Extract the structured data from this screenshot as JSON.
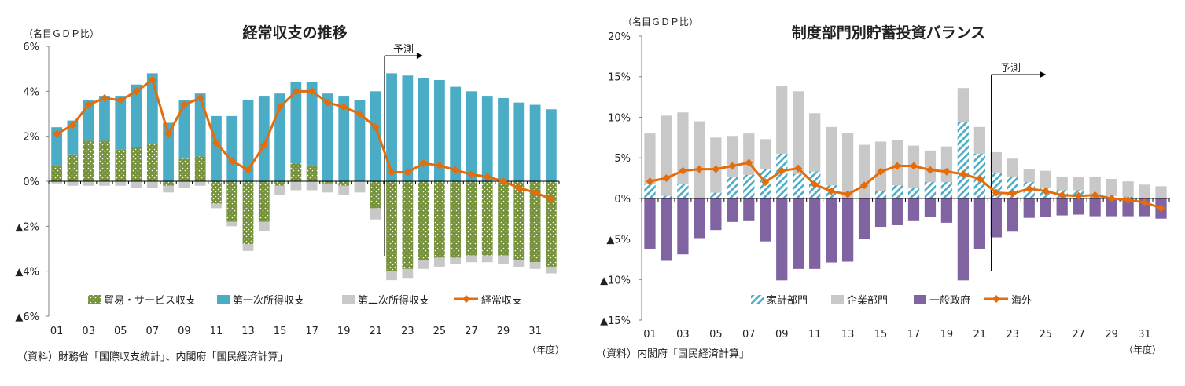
{
  "chart_data": [
    {
      "type": "bar",
      "title": "経常収支の推移",
      "unit_label": "（名目ＧＤＰ比）",
      "xlabel": "（年度）",
      "source": "（資料）財務省「国際収支統計」、内閣府「国民経済計算」",
      "forecast_label": "予測",
      "forecast_start_index": 21,
      "ylim": [
        -6,
        6
      ],
      "ytick_values": [
        6,
        4,
        2,
        0,
        -2,
        -4,
        -6
      ],
      "ytick_labels": [
        "6%",
        "4%",
        "2%",
        "0%",
        "▲2%",
        "▲4%",
        "▲6%"
      ],
      "years": [
        "01",
        "02",
        "03",
        "04",
        "05",
        "06",
        "07",
        "08",
        "09",
        "10",
        "11",
        "12",
        "13",
        "14",
        "15",
        "16",
        "17",
        "18",
        "19",
        "20",
        "21",
        "22",
        "23",
        "24",
        "25",
        "26",
        "27",
        "28",
        "29",
        "30",
        "31",
        "32"
      ],
      "xtick_labels": [
        "01",
        "",
        "03",
        "",
        "05",
        "",
        "07",
        "",
        "09",
        "",
        "11",
        "",
        "13",
        "",
        "15",
        "",
        "17",
        "",
        "19",
        "",
        "21",
        "",
        "23",
        "",
        "25",
        "",
        "27",
        "",
        "29",
        "",
        "31",
        ""
      ],
      "stacked_series": [
        {
          "name": "貿易・サービス収支",
          "color": "#76933c",
          "values": [
            0.7,
            1.2,
            1.8,
            1.8,
            1.4,
            1.5,
            1.7,
            -0.2,
            1.0,
            1.1,
            -1.0,
            -1.8,
            -2.8,
            -1.8,
            -0.2,
            0.8,
            0.7,
            -0.1,
            -0.2,
            0.0,
            -1.2,
            -4.0,
            -3.9,
            -3.5,
            -3.4,
            -3.4,
            -3.3,
            -3.3,
            -3.3,
            -3.5,
            -3.6,
            -3.8
          ]
        },
        {
          "name": "第一次所得収支",
          "color": "#4bacc6",
          "values": [
            1.7,
            1.5,
            1.8,
            2.0,
            2.4,
            2.8,
            3.1,
            2.6,
            2.6,
            2.8,
            2.9,
            2.9,
            3.6,
            3.8,
            3.9,
            3.6,
            3.7,
            3.9,
            3.8,
            3.6,
            4.0,
            4.8,
            4.7,
            4.6,
            4.5,
            4.2,
            4.0,
            3.8,
            3.7,
            3.5,
            3.4,
            3.2
          ]
        },
        {
          "name": "第二次所得収支",
          "color": "#c8c8c8",
          "values": [
            -0.1,
            -0.2,
            -0.2,
            -0.2,
            -0.2,
            -0.3,
            -0.3,
            -0.3,
            -0.3,
            -0.2,
            -0.2,
            -0.2,
            -0.3,
            -0.4,
            -0.4,
            -0.4,
            -0.4,
            -0.4,
            -0.4,
            -0.5,
            -0.5,
            -0.4,
            -0.4,
            -0.4,
            -0.4,
            -0.3,
            -0.3,
            -0.3,
            -0.4,
            -0.3,
            -0.3,
            -0.3
          ]
        }
      ],
      "line_series": {
        "name": "経常収支",
        "color": "#e46c0a",
        "values": [
          2.1,
          2.5,
          3.4,
          3.7,
          3.6,
          4.0,
          4.5,
          2.1,
          3.4,
          3.7,
          1.7,
          0.9,
          0.5,
          1.6,
          3.3,
          4.0,
          4.0,
          3.5,
          3.3,
          3.0,
          2.4,
          0.4,
          0.4,
          0.8,
          0.7,
          0.5,
          0.3,
          0.2,
          0.0,
          -0.3,
          -0.5,
          -0.8
        ]
      },
      "legend": [
        "貿易・サービス収支",
        "第一次所得収支",
        "第二次所得収支",
        "経常収支"
      ]
    },
    {
      "type": "bar",
      "title": "制度部門別貯蓄投資バランス",
      "unit_label": "（名目ＧＤＰ比）",
      "xlabel": "（年度）",
      "source": "（資料）内閣府「国民経済計算」",
      "forecast_label": "予測",
      "forecast_start_index": 21,
      "ylim": [
        -15,
        20
      ],
      "ytick_values": [
        20,
        15,
        10,
        5,
        0,
        -5,
        -10,
        -15
      ],
      "ytick_labels": [
        "20%",
        "15%",
        "10%",
        "5%",
        "0%",
        "▲5%",
        "▲10%",
        "▲15%"
      ],
      "years": [
        "01",
        "02",
        "03",
        "04",
        "05",
        "06",
        "07",
        "08",
        "09",
        "10",
        "11",
        "12",
        "13",
        "14",
        "15",
        "16",
        "17",
        "18",
        "19",
        "20",
        "21",
        "22",
        "23",
        "24",
        "25",
        "26",
        "27",
        "28",
        "29",
        "30",
        "31",
        "32"
      ],
      "xtick_labels": [
        "01",
        "",
        "03",
        "",
        "05",
        "",
        "07",
        "",
        "09",
        "",
        "11",
        "",
        "13",
        "",
        "15",
        "",
        "17",
        "",
        "19",
        "",
        "21",
        "",
        "23",
        "",
        "25",
        "",
        "27",
        "",
        "29",
        "",
        "31",
        ""
      ],
      "bar_series": [
        {
          "name": "家計部門",
          "color": "#4bacc6",
          "values": [
            1.8,
            0.3,
            1.8,
            0.0,
            0.7,
            2.6,
            2.9,
            3.6,
            5.5,
            3.0,
            3.3,
            1.6,
            -0.5,
            0.0,
            0.9,
            1.6,
            1.3,
            2.0,
            2.0,
            9.4,
            5.5,
            3.1,
            2.7,
            2.0,
            1.3,
            1.0,
            1.0,
            0.5,
            0.3,
            0.2,
            0.0,
            -0.2
          ]
        },
        {
          "name": "企業部門",
          "color": "#c8c8c8",
          "values": [
            8.0,
            10.2,
            10.6,
            9.5,
            7.5,
            7.7,
            8.0,
            7.3,
            13.9,
            13.2,
            10.5,
            8.8,
            8.1,
            6.6,
            7.0,
            7.2,
            6.5,
            5.9,
            6.4,
            13.6,
            8.8,
            5.7,
            4.9,
            3.6,
            3.4,
            2.7,
            2.7,
            2.7,
            2.4,
            2.1,
            1.7,
            1.5
          ]
        },
        {
          "name": "一般政府",
          "color": "#8064a2",
          "values": [
            -6.2,
            -7.7,
            -6.9,
            -4.9,
            -3.9,
            -2.9,
            -2.8,
            -5.3,
            -10.1,
            -8.7,
            -8.7,
            -7.9,
            -7.8,
            -5.0,
            -3.5,
            -3.3,
            -2.8,
            -2.3,
            -3.0,
            -10.1,
            -6.2,
            -4.8,
            -4.1,
            -2.4,
            -2.3,
            -2.1,
            -2.0,
            -2.2,
            -2.2,
            -2.2,
            -2.2,
            -2.5
          ]
        }
      ],
      "line_series": {
        "name": "海外",
        "color": "#e46c0a",
        "values": [
          2.1,
          2.5,
          3.4,
          3.6,
          3.6,
          4.0,
          4.4,
          2.0,
          3.4,
          3.7,
          1.7,
          0.9,
          0.5,
          1.6,
          3.3,
          4.0,
          4.0,
          3.5,
          3.3,
          3.0,
          2.4,
          0.7,
          0.6,
          1.2,
          0.9,
          0.4,
          0.3,
          0.4,
          0.0,
          -0.2,
          -0.5,
          -1.2
        ]
      },
      "legend": [
        "家計部門",
        "企業部門",
        "一般政府",
        "海外"
      ]
    }
  ]
}
